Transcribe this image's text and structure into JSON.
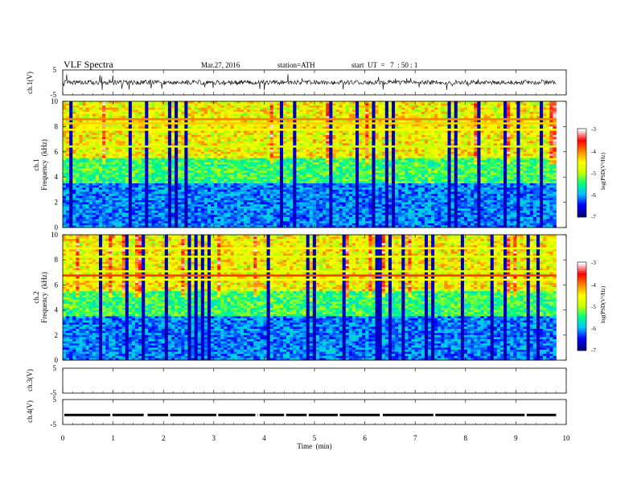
{
  "header": {
    "title": "VLF Spectra",
    "date": "Mar.27, 2016",
    "station": "station=ATH",
    "start": "start  UT  =   7  : 50 : 1"
  },
  "chart_data": [
    {
      "type": "line",
      "panel": "ch1-waveform",
      "ylabel": "ch.1(V)",
      "ylim": [
        -5,
        5
      ],
      "yticks": [
        "5",
        "-5"
      ],
      "x_range_min": [
        0,
        9.8
      ],
      "typical_value_v": 0,
      "amplitude_v": [
        -1.5,
        1.5
      ]
    },
    {
      "type": "heatmap",
      "panel": "ch1-spectrogram",
      "ylabel_channel": "ch.1",
      "ylabel": "Frequency  (kHz)",
      "ylim": [
        0,
        10
      ],
      "yticks": [
        "0",
        "2",
        "4",
        "6",
        "8",
        "10"
      ],
      "x_range_min": [
        0,
        9.8
      ],
      "colorbar": {
        "label": "log(PSD(V²/Hz)",
        "range": [
          -7,
          -3
        ],
        "ticks": [
          "-3",
          "-4",
          "-5",
          "-6",
          "-7"
        ]
      }
    },
    {
      "type": "heatmap",
      "panel": "ch2-spectrogram",
      "ylabel_channel": "ch.2",
      "ylabel": "Frequency  (kHz)",
      "ylim": [
        0,
        10
      ],
      "yticks": [
        "0",
        "2",
        "4",
        "6",
        "8",
        "10"
      ],
      "x_range_min": [
        0,
        9.8
      ],
      "colorbar": {
        "label": "log(PSD(V²/Hz)",
        "range": [
          -7,
          -3
        ],
        "ticks": [
          "-3",
          "-4",
          "-5",
          "-6",
          "-7"
        ]
      }
    },
    {
      "type": "line",
      "panel": "ch3-waveform",
      "ylabel": "ch.3(V)",
      "ylim": [
        -5,
        5
      ],
      "yticks": [
        "5",
        "-5"
      ],
      "flat": true
    },
    {
      "type": "line",
      "panel": "ch4-waveform",
      "ylabel": "ch.4(V)",
      "ylim": [
        -5,
        5
      ],
      "yticks": [
        "5",
        "-5"
      ],
      "typical_value_v": -1.2,
      "x_range_min": [
        0,
        9.8
      ]
    }
  ],
  "x_axis": {
    "label": "Time  (min)",
    "xlim": [
      0,
      10
    ],
    "ticks": [
      "0",
      "1",
      "2",
      "3",
      "4",
      "5",
      "6",
      "7",
      "8",
      "9",
      "10"
    ]
  },
  "colors": {
    "jet_scale": [
      "#00007f",
      "#0000ff",
      "#00c0ff",
      "#00ff80",
      "#c8ff00",
      "#ffff00",
      "#ff8000",
      "#ff0000",
      "#ffffff"
    ]
  }
}
